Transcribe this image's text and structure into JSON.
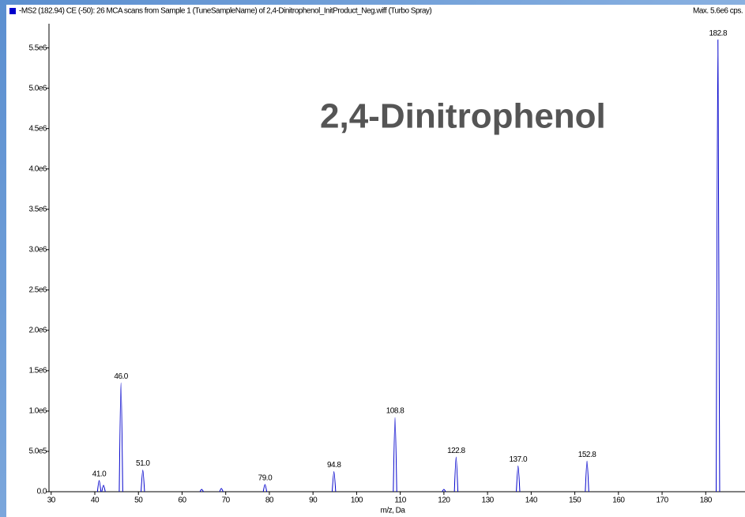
{
  "chart_data": {
    "type": "spectrum",
    "title": "-MS2 (182.94) CE (-50): 26 MCA scans from Sample 1 (TuneSampleName) of 2,4-Dinitrophenol_InitProduct_Neg.wiff (Turbo Spray)",
    "max_label": "Max. 5.6e6 cps.",
    "annotation": "2,4-Dinitrophenol",
    "x_label": "m/z, Da",
    "color": "#0000cc",
    "x": [
      41.0,
      42.0,
      46.0,
      51.0,
      64.5,
      69.0,
      79.0,
      94.8,
      108.8,
      120.0,
      122.8,
      137.0,
      152.8,
      182.8
    ],
    "values": [
      140000,
      80000,
      1350000,
      270000,
      30000,
      40000,
      90000,
      250000,
      920000,
      30000,
      430000,
      320000,
      380000,
      5600000
    ],
    "peak_labels": [
      "41.0",
      null,
      "46.0",
      "51.0",
      null,
      null,
      "79.0",
      "94.8",
      "108.8",
      null,
      "122.8",
      "137.0",
      "152.8",
      "182.8"
    ],
    "xlim": [
      29.5,
      189
    ],
    "xticks": [
      30,
      40,
      50,
      60,
      70,
      80,
      90,
      100,
      110,
      120,
      130,
      140,
      150,
      160,
      170,
      180
    ],
    "ylim": [
      0,
      5800000
    ],
    "yticks": [
      {
        "value": 0,
        "label": "0.0"
      },
      {
        "value": 500000,
        "label": "5.0e5"
      },
      {
        "value": 1000000,
        "label": "1.0e6"
      },
      {
        "value": 1500000,
        "label": "1.5e6"
      },
      {
        "value": 2000000,
        "label": "2.0e6"
      },
      {
        "value": 2500000,
        "label": "2.5e6"
      },
      {
        "value": 3000000,
        "label": "3.0e6"
      },
      {
        "value": 3500000,
        "label": "3.5e6"
      },
      {
        "value": 4000000,
        "label": "4.0e6"
      },
      {
        "value": 4500000,
        "label": "4.5e6"
      },
      {
        "value": 5000000,
        "label": "5.0e6"
      },
      {
        "value": 5500000,
        "label": "5.5e6"
      }
    ]
  }
}
